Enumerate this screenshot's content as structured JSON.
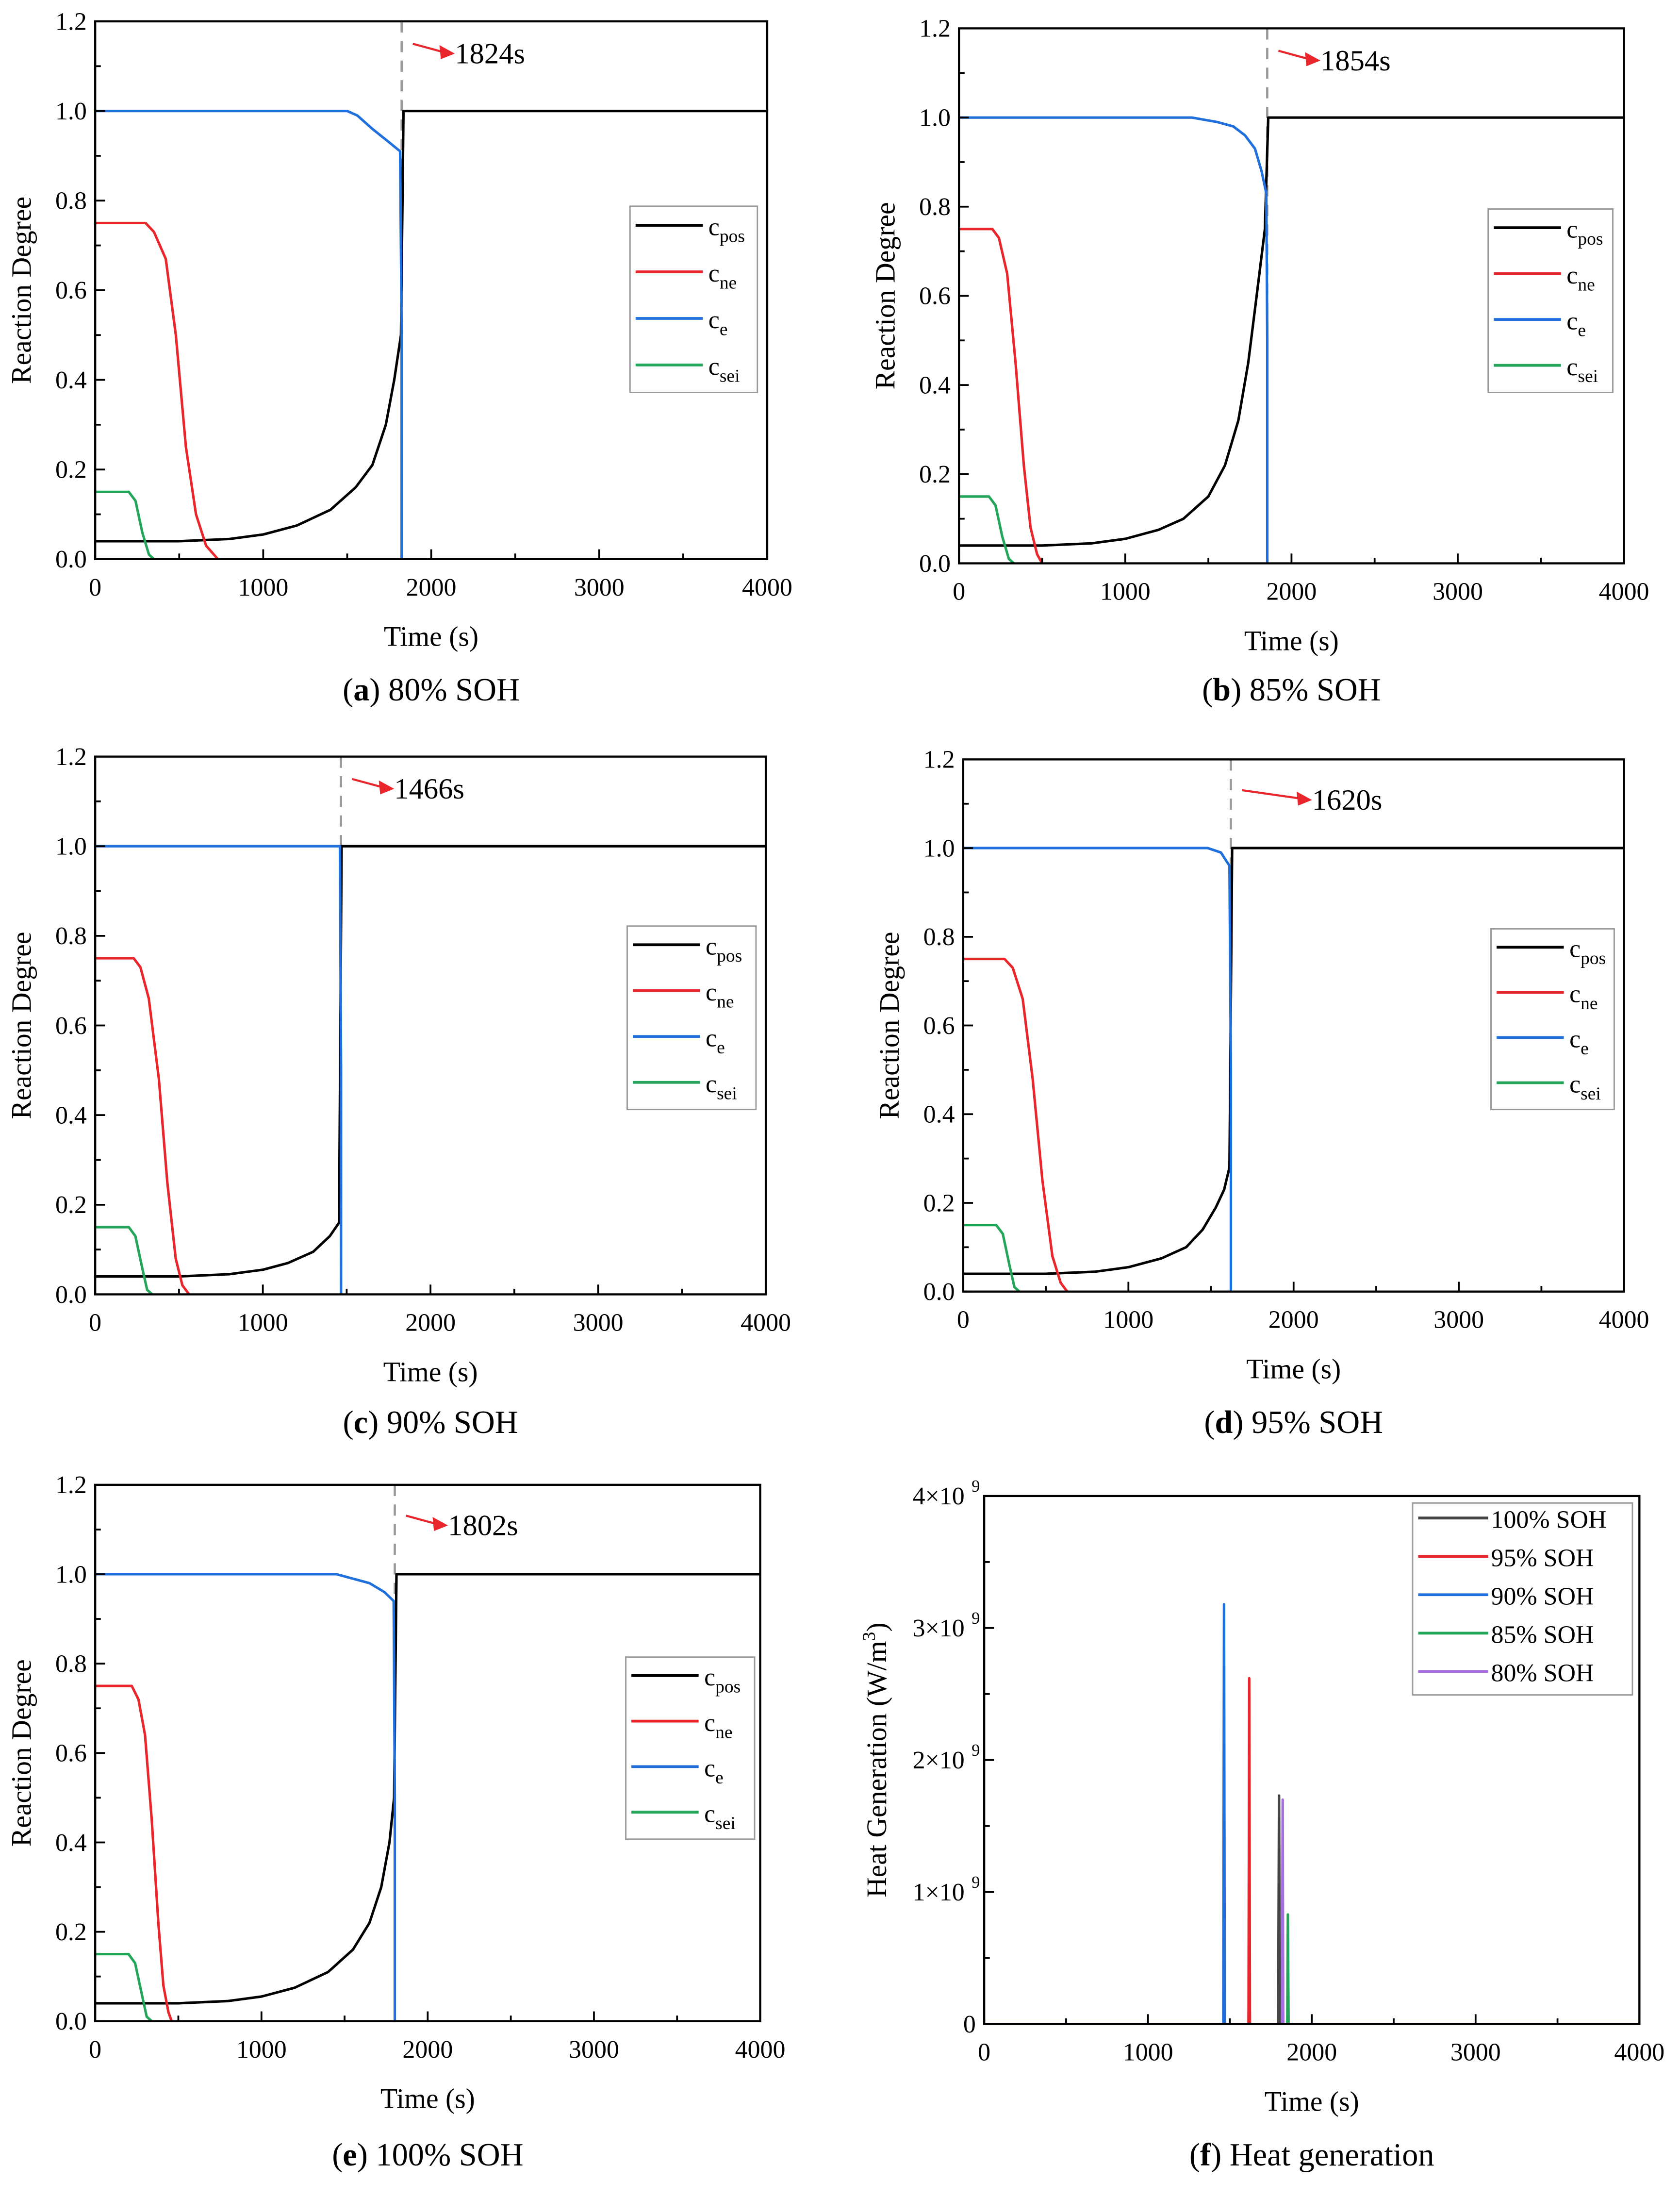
{
  "chart_data": [
    {
      "type": "line",
      "panel": "a",
      "caption_letter": "a",
      "caption_text": "80% SOH",
      "xlabel": "Time (s)",
      "ylabel": "Reaction Degree",
      "xlim": [
        0,
        4000
      ],
      "ylim": [
        0,
        1.2
      ],
      "xticks": [
        "0",
        "1000",
        "2000",
        "3000",
        "4000"
      ],
      "yticks": [
        "0.0",
        "0.2",
        "0.4",
        "0.6",
        "0.8",
        "1.0",
        "1.2"
      ],
      "annotation": {
        "time": 1824,
        "label": "1824s"
      },
      "series": [
        {
          "name": "c_pos",
          "label": "c",
          "sub": "pos",
          "color": "#000000",
          "x": [
            0,
            500,
            800,
            1000,
            1200,
            1400,
            1550,
            1650,
            1730,
            1780,
            1820,
            1835,
            4000
          ],
          "y": [
            0.04,
            0.04,
            0.045,
            0.055,
            0.075,
            0.11,
            0.16,
            0.21,
            0.3,
            0.4,
            0.5,
            1.0,
            1.0
          ]
        },
        {
          "name": "c_ne",
          "label": "c",
          "sub": "ne",
          "color": "#e8262b",
          "x": [
            0,
            300,
            350,
            420,
            480,
            540,
            600,
            660,
            730
          ],
          "y": [
            0.75,
            0.75,
            0.73,
            0.67,
            0.5,
            0.25,
            0.1,
            0.03,
            0
          ]
        },
        {
          "name": "c_e",
          "label": "c",
          "sub": "e",
          "color": "#1f6fdc",
          "x": [
            0,
            1500,
            1560,
            1650,
            1750,
            1815,
            1824,
            1824
          ],
          "y": [
            1,
            1,
            0.99,
            0.96,
            0.93,
            0.91,
            0.5,
            0
          ]
        },
        {
          "name": "c_sei",
          "label": "c",
          "sub": "sei",
          "color": "#23a55a",
          "x": [
            0,
            200,
            240,
            280,
            320,
            350
          ],
          "y": [
            0.15,
            0.15,
            0.13,
            0.06,
            0.01,
            0
          ]
        }
      ]
    },
    {
      "type": "line",
      "panel": "b",
      "caption_letter": "b",
      "caption_text": "85% SOH",
      "xlabel": "Time (s)",
      "ylabel": "Reaction Degree",
      "xlim": [
        0,
        4000
      ],
      "ylim": [
        0,
        1.2
      ],
      "xticks": [
        "0",
        "1000",
        "2000",
        "3000",
        "4000"
      ],
      "yticks": [
        "0.0",
        "0.2",
        "0.4",
        "0.6",
        "0.8",
        "1.0",
        "1.2"
      ],
      "annotation": {
        "time": 1854,
        "label": "1854s"
      },
      "series": [
        {
          "name": "c_pos",
          "label": "c",
          "sub": "pos",
          "color": "#000000",
          "x": [
            0,
            500,
            800,
            1000,
            1200,
            1350,
            1500,
            1600,
            1680,
            1740,
            1790,
            1840,
            1860,
            4000
          ],
          "y": [
            0.04,
            0.04,
            0.045,
            0.055,
            0.075,
            0.1,
            0.15,
            0.22,
            0.32,
            0.45,
            0.6,
            0.75,
            1.0,
            1.0
          ]
        },
        {
          "name": "c_ne",
          "label": "c",
          "sub": "ne",
          "color": "#e8262b",
          "x": [
            0,
            200,
            240,
            290,
            340,
            390,
            430,
            470,
            500
          ],
          "y": [
            0.75,
            0.75,
            0.73,
            0.65,
            0.45,
            0.22,
            0.08,
            0.02,
            0
          ]
        },
        {
          "name": "c_e",
          "label": "c",
          "sub": "e",
          "color": "#1f6fdc",
          "x": [
            0,
            1400,
            1550,
            1650,
            1720,
            1780,
            1820,
            1848,
            1854,
            1854
          ],
          "y": [
            1,
            1,
            0.99,
            0.98,
            0.96,
            0.93,
            0.88,
            0.83,
            0.5,
            0
          ]
        },
        {
          "name": "c_sei",
          "label": "c",
          "sub": "sei",
          "color": "#23a55a",
          "x": [
            0,
            180,
            220,
            260,
            300,
            330
          ],
          "y": [
            0.15,
            0.15,
            0.13,
            0.06,
            0.01,
            0
          ]
        }
      ]
    },
    {
      "type": "line",
      "panel": "c",
      "caption_letter": "c",
      "caption_text": "90% SOH",
      "xlabel": "Time (s)",
      "ylabel": "Reaction Degree",
      "xlim": [
        0,
        4000
      ],
      "ylim": [
        0,
        1.2
      ],
      "xticks": [
        "0",
        "1000",
        "2000",
        "3000",
        "4000"
      ],
      "yticks": [
        "0.0",
        "0.2",
        "0.4",
        "0.6",
        "0.8",
        "1.0",
        "1.2"
      ],
      "annotation": {
        "time": 1466,
        "label": "1466s"
      },
      "series": [
        {
          "name": "c_pos",
          "label": "c",
          "sub": "pos",
          "color": "#000000",
          "x": [
            0,
            500,
            800,
            1000,
            1150,
            1300,
            1400,
            1455,
            1470,
            4000
          ],
          "y": [
            0.04,
            0.04,
            0.045,
            0.055,
            0.07,
            0.095,
            0.13,
            0.16,
            1.0,
            1.0
          ]
        },
        {
          "name": "c_ne",
          "label": "c",
          "sub": "ne",
          "color": "#e8262b",
          "x": [
            0,
            230,
            270,
            320,
            380,
            430,
            480,
            520,
            560
          ],
          "y": [
            0.75,
            0.75,
            0.73,
            0.66,
            0.48,
            0.25,
            0.08,
            0.02,
            0
          ]
        },
        {
          "name": "c_e",
          "label": "c",
          "sub": "e",
          "color": "#1f6fdc",
          "x": [
            0,
            1460,
            1466,
            1466
          ],
          "y": [
            1,
            1,
            0.5,
            0
          ]
        },
        {
          "name": "c_sei",
          "label": "c",
          "sub": "sei",
          "color": "#23a55a",
          "x": [
            0,
            200,
            240,
            280,
            310,
            340
          ],
          "y": [
            0.15,
            0.15,
            0.13,
            0.06,
            0.01,
            0
          ]
        }
      ]
    },
    {
      "type": "line",
      "panel": "d",
      "caption_letter": "d",
      "caption_text": "95% SOH",
      "xlabel": "Time (s)",
      "ylabel": "Reaction Degree",
      "xlim": [
        0,
        4000
      ],
      "ylim": [
        0,
        1.2
      ],
      "xticks": [
        "0",
        "1000",
        "2000",
        "3000",
        "4000"
      ],
      "yticks": [
        "0.0",
        "0.2",
        "0.4",
        "0.6",
        "0.8",
        "1.0",
        "1.2"
      ],
      "annotation": {
        "time": 1620,
        "label": "1620s"
      },
      "series": [
        {
          "name": "c_pos",
          "label": "c",
          "sub": "pos",
          "color": "#000000",
          "x": [
            0,
            500,
            800,
            1000,
            1200,
            1350,
            1450,
            1530,
            1580,
            1612,
            1628,
            4000
          ],
          "y": [
            0.04,
            0.04,
            0.045,
            0.055,
            0.075,
            0.1,
            0.14,
            0.19,
            0.23,
            0.28,
            1.0,
            1.0
          ]
        },
        {
          "name": "c_ne",
          "label": "c",
          "sub": "ne",
          "color": "#e8262b",
          "x": [
            0,
            250,
            300,
            360,
            420,
            480,
            540,
            590,
            630
          ],
          "y": [
            0.75,
            0.75,
            0.73,
            0.66,
            0.48,
            0.25,
            0.08,
            0.02,
            0
          ]
        },
        {
          "name": "c_e",
          "label": "c",
          "sub": "e",
          "color": "#1f6fdc",
          "x": [
            0,
            1480,
            1560,
            1612,
            1620,
            1620
          ],
          "y": [
            1,
            1,
            0.99,
            0.96,
            0.5,
            0
          ]
        },
        {
          "name": "c_sei",
          "label": "c",
          "sub": "sei",
          "color": "#23a55a",
          "x": [
            0,
            200,
            240,
            280,
            310,
            340
          ],
          "y": [
            0.15,
            0.15,
            0.13,
            0.06,
            0.01,
            0
          ]
        }
      ]
    },
    {
      "type": "line",
      "panel": "e",
      "caption_letter": "e",
      "caption_text": "100% SOH",
      "xlabel": "Time (s)",
      "ylabel": "Reaction Degree",
      "xlim": [
        0,
        4000
      ],
      "ylim": [
        0,
        1.2
      ],
      "xticks": [
        "0",
        "1000",
        "2000",
        "3000",
        "4000"
      ],
      "yticks": [
        "0.0",
        "0.2",
        "0.4",
        "0.6",
        "0.8",
        "1.0",
        "1.2"
      ],
      "annotation": {
        "time": 1802,
        "label": "1802s"
      },
      "series": [
        {
          "name": "c_pos",
          "label": "c",
          "sub": "pos",
          "color": "#000000",
          "x": [
            0,
            500,
            800,
            1000,
            1200,
            1400,
            1550,
            1650,
            1720,
            1770,
            1798,
            1812,
            4000
          ],
          "y": [
            0.04,
            0.04,
            0.045,
            0.055,
            0.075,
            0.11,
            0.16,
            0.22,
            0.3,
            0.4,
            0.5,
            1.0,
            1.0
          ]
        },
        {
          "name": "c_ne",
          "label": "c",
          "sub": "ne",
          "color": "#e8262b",
          "x": [
            0,
            220,
            260,
            300,
            340,
            380,
            410,
            440,
            460
          ],
          "y": [
            0.75,
            0.75,
            0.72,
            0.64,
            0.45,
            0.22,
            0.08,
            0.02,
            0
          ]
        },
        {
          "name": "c_e",
          "label": "c",
          "sub": "e",
          "color": "#1f6fdc",
          "x": [
            0,
            1450,
            1550,
            1650,
            1740,
            1795,
            1802,
            1802
          ],
          "y": [
            1,
            1,
            0.99,
            0.98,
            0.96,
            0.94,
            0.5,
            0
          ]
        },
        {
          "name": "c_sei",
          "label": "c",
          "sub": "sei",
          "color": "#23a55a",
          "x": [
            0,
            200,
            240,
            280,
            310,
            340
          ],
          "y": [
            0.15,
            0.15,
            0.13,
            0.06,
            0.01,
            0
          ]
        }
      ]
    },
    {
      "type": "line",
      "panel": "f",
      "caption_letter": "f",
      "caption_text": "Heat generation",
      "xlabel": "Time (s)",
      "ylabel": "Heat Generation (W/m",
      "ylabel_sup": "3",
      "ylabel_end": ")",
      "xlim": [
        0,
        4000
      ],
      "ylim": [
        0,
        4000000000.0
      ],
      "xticks": [
        "0",
        "1000",
        "2000",
        "3000",
        "4000"
      ],
      "yticks": [
        "0",
        "1×10",
        "2×10",
        "3×10",
        "4×10"
      ],
      "ytick_exp": "9",
      "series": [
        {
          "name": "100% SOH",
          "label": "100% SOH",
          "color": "#444444",
          "x": [
            0,
            1795,
            1800,
            1805,
            4000
          ],
          "y": [
            0,
            0,
            1730000000.0,
            0,
            0
          ]
        },
        {
          "name": "95% SOH",
          "label": "95% SOH",
          "color": "#e8262b",
          "x": [
            0,
            1614,
            1618,
            1622,
            4000
          ],
          "y": [
            0,
            0,
            2620000000.0,
            0,
            0
          ]
        },
        {
          "name": "90% SOH",
          "label": "90% SOH",
          "color": "#1f6fdc",
          "x": [
            0,
            1460,
            1464,
            1468,
            4000
          ],
          "y": [
            0,
            0,
            3180000000.0,
            0,
            0
          ]
        },
        {
          "name": "85% SOH",
          "label": "85% SOH",
          "color": "#23a55a",
          "x": [
            0,
            1850,
            1854,
            1858,
            4000
          ],
          "y": [
            0,
            0,
            830000000.0,
            0,
            0
          ]
        },
        {
          "name": "80% SOH",
          "label": "80% SOH",
          "color": "#a66ee0",
          "x": [
            0,
            1818,
            1822,
            1826,
            4000
          ],
          "y": [
            0,
            0,
            1700000000.0,
            0,
            0
          ]
        }
      ]
    }
  ]
}
